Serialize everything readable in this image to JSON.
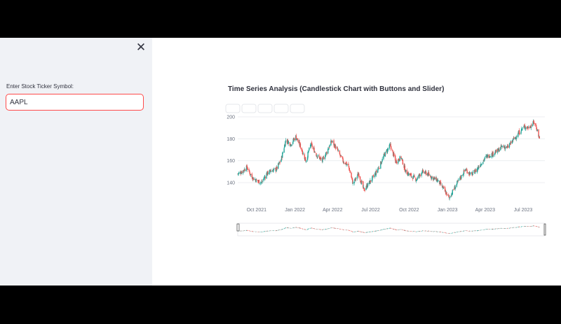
{
  "sidebar": {
    "close_icon": "close-icon",
    "input_label": "Enter Stock Ticker Symbol:",
    "input_value": "AAPL"
  },
  "colors": {
    "increasing": "#26a69a",
    "decreasing": "#ef5350",
    "input_focus": "#ff4b4b"
  },
  "chart_data": {
    "type": "candlestick",
    "title": "Time Series Analysis (Candlestick Chart with Buttons and Slider)",
    "xlabel": "",
    "ylabel": "",
    "ylim": [
      124,
      200
    ],
    "yticks": [
      140,
      160,
      180,
      200
    ],
    "xticks": [
      "Oct 2021",
      "Jan 2022",
      "Apr 2022",
      "Jul 2022",
      "Oct 2022",
      "Jan 2023",
      "Apr 2023",
      "Jul 2023"
    ],
    "xrange": [
      "2021-08-17",
      "2023-08-22"
    ],
    "range_selector_buttons": 5,
    "range_slider": true,
    "grid": "horizontal",
    "legend": "none",
    "series": [
      {
        "points": [
          [
            "2021-08-17",
            148
          ],
          [
            "2021-08-27",
            150
          ],
          [
            "2021-09-08",
            154
          ],
          [
            "2021-09-20",
            145
          ],
          [
            "2021-10-01",
            142
          ],
          [
            "2021-10-13",
            140
          ],
          [
            "2021-10-25",
            148
          ],
          [
            "2021-11-05",
            151
          ],
          [
            "2021-11-17",
            152
          ],
          [
            "2021-11-29",
            161
          ],
          [
            "2021-12-10",
            179
          ],
          [
            "2021-12-22",
            175
          ],
          [
            "2022-01-03",
            182
          ],
          [
            "2022-01-14",
            173
          ],
          [
            "2022-01-27",
            160
          ],
          [
            "2022-02-08",
            175
          ],
          [
            "2022-02-22",
            165
          ],
          [
            "2022-03-07",
            160
          ],
          [
            "2022-03-18",
            168
          ],
          [
            "2022-03-30",
            178
          ],
          [
            "2022-04-12",
            170
          ],
          [
            "2022-04-25",
            160
          ],
          [
            "2022-05-09",
            155
          ],
          [
            "2022-05-20",
            139
          ],
          [
            "2022-06-02",
            148
          ],
          [
            "2022-06-15",
            133
          ],
          [
            "2022-06-28",
            140
          ],
          [
            "2022-07-11",
            147
          ],
          [
            "2022-07-22",
            155
          ],
          [
            "2022-08-04",
            166
          ],
          [
            "2022-08-17",
            174
          ],
          [
            "2022-08-30",
            159
          ],
          [
            "2022-09-12",
            163
          ],
          [
            "2022-09-23",
            150
          ],
          [
            "2022-10-06",
            146
          ],
          [
            "2022-10-19",
            143
          ],
          [
            "2022-11-01",
            150
          ],
          [
            "2022-11-14",
            148
          ],
          [
            "2022-11-28",
            144
          ],
          [
            "2022-12-09",
            142
          ],
          [
            "2022-12-21",
            135
          ],
          [
            "2023-01-05",
            126
          ],
          [
            "2023-01-19",
            136
          ],
          [
            "2023-01-31",
            144
          ],
          [
            "2023-02-13",
            152
          ],
          [
            "2023-02-27",
            147
          ],
          [
            "2023-03-10",
            151
          ],
          [
            "2023-03-23",
            158
          ],
          [
            "2023-04-05",
            164
          ],
          [
            "2023-04-18",
            166
          ],
          [
            "2023-05-01",
            169
          ],
          [
            "2023-05-12",
            173
          ],
          [
            "2023-05-25",
            172
          ],
          [
            "2023-06-07",
            179
          ],
          [
            "2023-06-20",
            185
          ],
          [
            "2023-07-03",
            191
          ],
          [
            "2023-07-14",
            190
          ],
          [
            "2023-07-27",
            195
          ],
          [
            "2023-08-03",
            189
          ],
          [
            "2023-08-09",
            180
          ]
        ]
      }
    ]
  }
}
